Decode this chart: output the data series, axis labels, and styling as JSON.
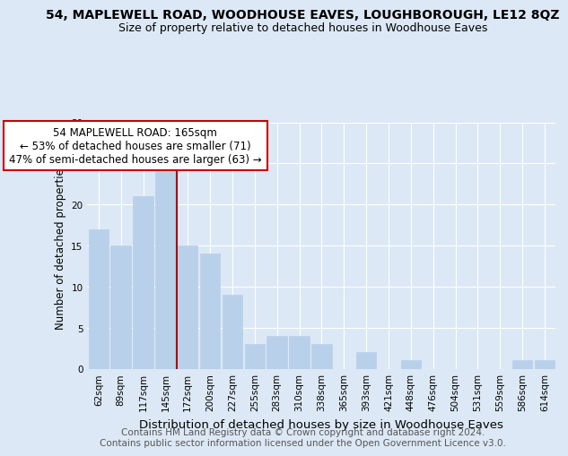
{
  "title1": "54, MAPLEWELL ROAD, WOODHOUSE EAVES, LOUGHBOROUGH, LE12 8QZ",
  "title2": "Size of property relative to detached houses in Woodhouse Eaves",
  "xlabel": "Distribution of detached houses by size in Woodhouse Eaves",
  "ylabel": "Number of detached properties",
  "footnote": "Contains HM Land Registry data © Crown copyright and database right 2024.\nContains public sector information licensed under the Open Government Licence v3.0.",
  "categories": [
    "62sqm",
    "89sqm",
    "117sqm",
    "145sqm",
    "172sqm",
    "200sqm",
    "227sqm",
    "255sqm",
    "283sqm",
    "310sqm",
    "338sqm",
    "365sqm",
    "393sqm",
    "421sqm",
    "448sqm",
    "476sqm",
    "504sqm",
    "531sqm",
    "559sqm",
    "586sqm",
    "614sqm"
  ],
  "values": [
    17,
    15,
    21,
    25,
    15,
    14,
    9,
    3,
    4,
    4,
    3,
    0,
    2,
    0,
    1,
    0,
    0,
    0,
    0,
    1,
    1
  ],
  "bar_color": "#b8d0ea",
  "bar_edgecolor": "#b8d0ea",
  "vline_index": 3.5,
  "vline_color": "#aa0000",
  "annotation_text": "54 MAPLEWELL ROAD: 165sqm\n← 53% of detached houses are smaller (71)\n47% of semi-detached houses are larger (63) →",
  "annotation_box_edgecolor": "#cc0000",
  "annotation_box_facecolor": "#ffffff",
  "ylim_max": 30,
  "yticks": [
    0,
    5,
    10,
    15,
    20,
    25,
    30
  ],
  "bg_color": "#dce8f5",
  "grid_color": "#ffffff",
  "title1_fontsize": 10,
  "title2_fontsize": 9,
  "tick_fontsize": 7.5,
  "ylabel_fontsize": 8.5,
  "xlabel_fontsize": 9.5,
  "footnote_fontsize": 7.5,
  "ann_fontsize": 8.5
}
